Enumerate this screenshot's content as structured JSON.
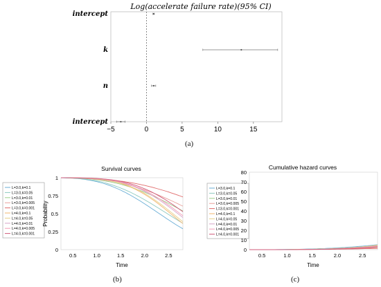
{
  "captions": {
    "a": "(a)",
    "b": "(b)",
    "c": "(c)"
  },
  "chart_data": [
    {
      "type": "scatter",
      "title": "Log(accelerate failure rate)(95% CI)",
      "xlim": [
        -5,
        19
      ],
      "xticks": [
        "−5",
        "0",
        "5",
        "10",
        "15"
      ],
      "xtick_values": [
        -5,
        0,
        5,
        10,
        15
      ],
      "reference_line_x": 0,
      "rows": [
        {
          "label": "intercept",
          "estimate": 1.0,
          "lower": 0.9,
          "upper": 1.1
        },
        {
          "label": "k",
          "estimate": 13.3,
          "lower": 7.9,
          "upper": 18.4
        },
        {
          "label": "n",
          "estimate": 1.0,
          "lower": 0.7,
          "upper": 1.3
        },
        {
          "label": "intercept",
          "estimate": -3.6,
          "lower": -4.2,
          "upper": -3.0
        }
      ],
      "grid": false
    },
    {
      "type": "line",
      "title": "Survival curves",
      "xlabel": "Time",
      "ylabel": "Probability",
      "xlim": [
        0.25,
        2.8
      ],
      "ylim": [
        0,
        1
      ],
      "xticks": [
        "0.5",
        "1.0",
        "1.5",
        "2.0",
        "2.5"
      ],
      "xtick_values": [
        0.5,
        1.0,
        1.5,
        2.0,
        2.5
      ],
      "yticks": [
        "0",
        "0.25",
        "0.5",
        "0.75",
        "1"
      ],
      "ytick_values": [
        0,
        0.25,
        0.5,
        0.75,
        1
      ],
      "legend_position": "left-outside",
      "series": [
        {
          "name": "L=3.0,k=0.1",
          "color": "#6aaed6",
          "L": 3,
          "k": 0.1
        },
        {
          "name": "L=3.0,k=0.05",
          "color": "#8dc9c0",
          "L": 3,
          "k": 0.05
        },
        {
          "name": "L=3.0,k=0.01",
          "color": "#9ccf8a",
          "L": 3,
          "k": 0.01
        },
        {
          "name": "L=3.0,k=0.005",
          "color": "#e8a09a",
          "L": 3,
          "k": 0.005
        },
        {
          "name": "L=3.0,k=0.001",
          "color": "#e06a6a",
          "L": 3,
          "k": 0.001
        },
        {
          "name": "L=4.0,k=0.1",
          "color": "#f0b56e",
          "L": 4,
          "k": 0.1
        },
        {
          "name": "L=4.0,k=0.05",
          "color": "#e8cf88",
          "L": 4,
          "k": 0.05
        },
        {
          "name": "L=4.0,k=0.01",
          "color": "#d6a3c8",
          "L": 4,
          "k": 0.01
        },
        {
          "name": "L=4.0,k=0.005",
          "color": "#f29bb5",
          "L": 4,
          "k": 0.005
        },
        {
          "name": "L=4.0,k=0.001",
          "color": "#d05a7a",
          "L": 4,
          "k": 0.001
        }
      ]
    },
    {
      "type": "line",
      "title": "Cumulative hazard curves",
      "xlabel": "Time",
      "ylabel": "",
      "xlim": [
        0.25,
        2.8
      ],
      "ylim": [
        0,
        80
      ],
      "xticks": [
        "0.5",
        "1.0",
        "1.5",
        "2.0",
        "2.5"
      ],
      "xtick_values": [
        0.5,
        1.0,
        1.5,
        2.0,
        2.5
      ],
      "yticks": [
        "0",
        "10",
        "20",
        "30",
        "40",
        "50",
        "60",
        "70",
        "80"
      ],
      "ytick_values": [
        0,
        10,
        20,
        30,
        40,
        50,
        60,
        70,
        80
      ],
      "legend_position": "top-left",
      "series": [
        {
          "name": "L=3.0,k=0.1",
          "color": "#6aaed6",
          "L": 3,
          "k": 0.1
        },
        {
          "name": "L=3.0,k=0.05",
          "color": "#8dc9c0",
          "L": 3,
          "k": 0.05
        },
        {
          "name": "L=3.0,k=0.01",
          "color": "#9ccf8a",
          "L": 3,
          "k": 0.01
        },
        {
          "name": "L=3.0,k=0.005",
          "color": "#e8a09a",
          "L": 3,
          "k": 0.005
        },
        {
          "name": "L=3.0,k=0.001",
          "color": "#e06a6a",
          "L": 3,
          "k": 0.001
        },
        {
          "name": "L=4.0,k=0.1",
          "color": "#f0b56e",
          "L": 4,
          "k": 0.1
        },
        {
          "name": "L=4.0,k=0.05",
          "color": "#e8cf88",
          "L": 4,
          "k": 0.05
        },
        {
          "name": "L=4.0,k=0.01",
          "color": "#d6a3c8",
          "L": 4,
          "k": 0.01
        },
        {
          "name": "L=4.0,k=0.005",
          "color": "#f29bb5",
          "L": 4,
          "k": 0.005
        },
        {
          "name": "L=4.0,k=0.001",
          "color": "#d05a7a",
          "L": 4,
          "k": 0.001
        }
      ]
    }
  ]
}
